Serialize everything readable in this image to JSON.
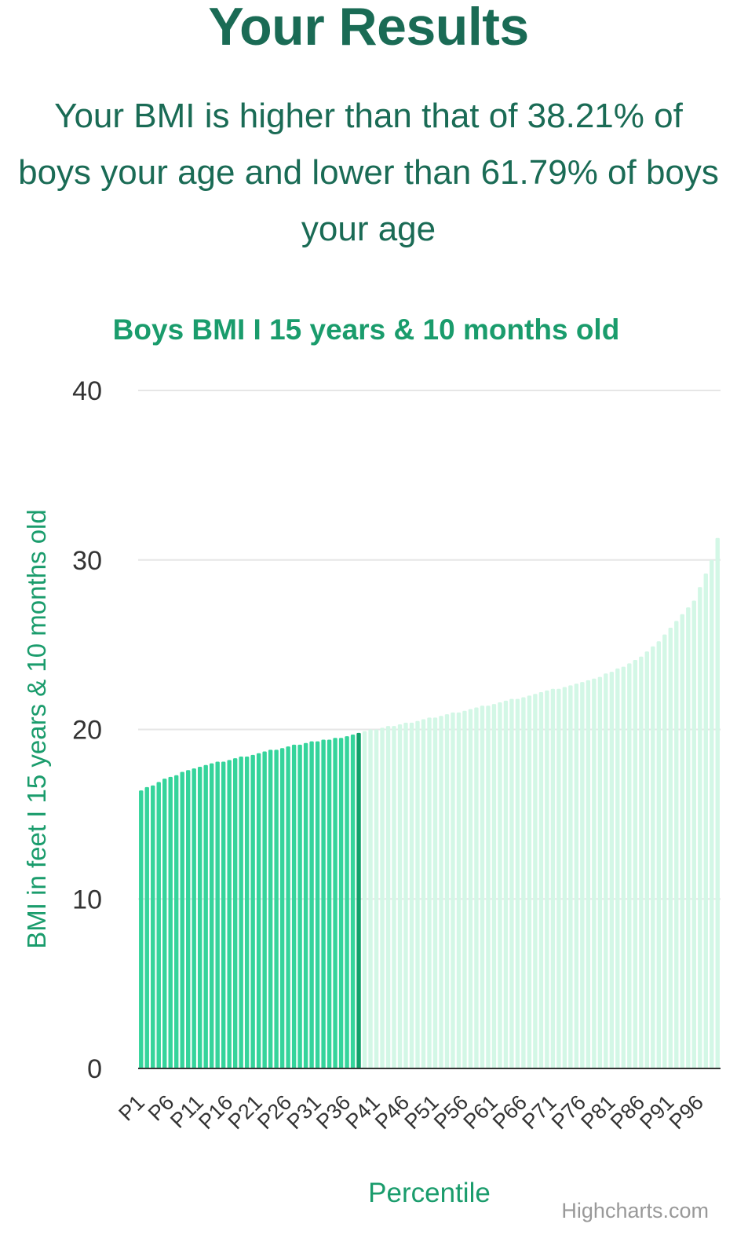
{
  "header": {
    "title": "Your Results",
    "summary": "Your BMI is higher than that of 38.21% of boys your age and lower than 61.79% of boys your age"
  },
  "credit": "Highcharts.com",
  "colors": {
    "heading": "#1a6b55",
    "chart_title": "#1a9c6c",
    "bar_below": "#35d49b",
    "bar_current": "#12a06a",
    "bar_above": "#d3f7e6",
    "gridline": "#e6e6e6",
    "axis_line": "#333333",
    "tick_label": "#333333"
  },
  "chart_data": {
    "type": "bar",
    "title": "Boys BMI I 15 years & 10 months old",
    "xlabel": "Percentile",
    "ylabel": "BMI in feet I 15 years & 10 months old",
    "ylim": [
      0,
      40
    ],
    "yticks": [
      0,
      10,
      20,
      30,
      40
    ],
    "grid": true,
    "highlight_category": "P38",
    "x_tick_labels": [
      "P1",
      "P6",
      "P11",
      "P16",
      "P21",
      "P26",
      "P31",
      "P36",
      "P41",
      "P46",
      "P51",
      "P56",
      "P61",
      "P66",
      "P71",
      "P76",
      "P81",
      "P86",
      "P91",
      "P96"
    ],
    "categories": [
      "P1",
      "P2",
      "P3",
      "P4",
      "P5",
      "P6",
      "P7",
      "P8",
      "P9",
      "P10",
      "P11",
      "P12",
      "P13",
      "P14",
      "P15",
      "P16",
      "P17",
      "P18",
      "P19",
      "P20",
      "P21",
      "P22",
      "P23",
      "P24",
      "P25",
      "P26",
      "P27",
      "P28",
      "P29",
      "P30",
      "P31",
      "P32",
      "P33",
      "P34",
      "P35",
      "P36",
      "P37",
      "P38",
      "P39",
      "P40",
      "P41",
      "P42",
      "P43",
      "P44",
      "P45",
      "P46",
      "P47",
      "P48",
      "P49",
      "P50",
      "P51",
      "P52",
      "P53",
      "P54",
      "P55",
      "P56",
      "P57",
      "P58",
      "P59",
      "P60",
      "P61",
      "P62",
      "P63",
      "P64",
      "P65",
      "P66",
      "P67",
      "P68",
      "P69",
      "P70",
      "P71",
      "P72",
      "P73",
      "P74",
      "P75",
      "P76",
      "P77",
      "P78",
      "P79",
      "P80",
      "P81",
      "P82",
      "P83",
      "P84",
      "P85",
      "P86",
      "P87",
      "P88",
      "P89",
      "P90",
      "P91",
      "P92",
      "P93",
      "P94",
      "P95",
      "P96",
      "P97",
      "P98",
      "P99"
    ],
    "values": [
      16.4,
      16.6,
      16.7,
      16.9,
      17.1,
      17.2,
      17.3,
      17.5,
      17.6,
      17.7,
      17.8,
      17.9,
      18.0,
      18.1,
      18.1,
      18.2,
      18.3,
      18.4,
      18.4,
      18.5,
      18.6,
      18.7,
      18.8,
      18.8,
      18.9,
      19.0,
      19.1,
      19.1,
      19.2,
      19.3,
      19.3,
      19.4,
      19.4,
      19.5,
      19.5,
      19.6,
      19.7,
      19.8,
      19.9,
      20.0,
      20.0,
      20.1,
      20.2,
      20.2,
      20.3,
      20.4,
      20.4,
      20.5,
      20.6,
      20.7,
      20.7,
      20.8,
      20.9,
      21.0,
      21.0,
      21.1,
      21.2,
      21.3,
      21.4,
      21.4,
      21.5,
      21.6,
      21.7,
      21.8,
      21.8,
      21.9,
      22.0,
      22.1,
      22.2,
      22.3,
      22.4,
      22.4,
      22.5,
      22.6,
      22.7,
      22.8,
      22.9,
      23.0,
      23.1,
      23.3,
      23.4,
      23.6,
      23.7,
      23.9,
      24.1,
      24.3,
      24.6,
      24.9,
      25.2,
      25.6,
      26.0,
      26.4,
      26.8,
      27.2,
      27.6,
      28.4,
      29.2,
      30.0,
      31.3
    ]
  }
}
